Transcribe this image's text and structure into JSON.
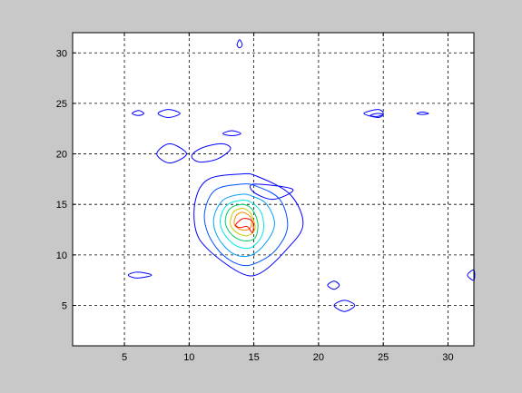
{
  "window": {
    "background": "#c8c8c8"
  },
  "chart_data": {
    "type": "contour",
    "title": "",
    "xlabel": "",
    "ylabel": "",
    "xlim": [
      1,
      32
    ],
    "ylim": [
      1,
      32
    ],
    "grid": true,
    "grid_style": "dashed",
    "xticks": [
      5,
      10,
      15,
      20,
      25,
      30
    ],
    "yticks": [
      5,
      10,
      15,
      20,
      25,
      30
    ],
    "xtick_labels": [
      "5",
      "10",
      "15",
      "20",
      "25",
      "30"
    ],
    "ytick_labels": [
      "5",
      "10",
      "15",
      "20",
      "25",
      "30"
    ],
    "level_colors": [
      "#0000ff",
      "#0050ff",
      "#00a0ff",
      "#00e6e6",
      "#00cc66",
      "#c8c800",
      "#ff8c00",
      "#ff0000"
    ],
    "contours": [
      {
        "level": 1,
        "color": "#0000ff",
        "points": [
          [
            14,
            18
          ],
          [
            11.5,
            17.5
          ],
          [
            10.5,
            15.5
          ],
          [
            10.5,
            12.5
          ],
          [
            11.5,
            10.5
          ],
          [
            14,
            8.2
          ],
          [
            15.5,
            8.2
          ],
          [
            17.5,
            10.5
          ],
          [
            18.8,
            13
          ],
          [
            17.8,
            16
          ],
          [
            15.2,
            17.8
          ]
        ]
      },
      {
        "level": 1,
        "color": "#0000ff",
        "points": [
          [
            15,
            17
          ],
          [
            18,
            16.5
          ],
          [
            16.5,
            15.5
          ],
          [
            15,
            16.2
          ]
        ]
      },
      {
        "level": 2,
        "color": "#0050ff",
        "points": [
          [
            14,
            17
          ],
          [
            12,
            16.4
          ],
          [
            11.2,
            14.2
          ],
          [
            11.5,
            12
          ],
          [
            12.6,
            10
          ],
          [
            14,
            9
          ],
          [
            15.2,
            9.2
          ],
          [
            16.7,
            10.5
          ],
          [
            17.6,
            12.8
          ],
          [
            17,
            15.5
          ],
          [
            15.2,
            16.8
          ]
        ]
      },
      {
        "level": 3,
        "color": "#00a0ff",
        "points": [
          [
            14,
            16
          ],
          [
            12.6,
            15.4
          ],
          [
            11.9,
            13.6
          ],
          [
            12.2,
            11.8
          ],
          [
            13.3,
            10.2
          ],
          [
            14.6,
            9.9
          ],
          [
            15.8,
            11
          ],
          [
            16.6,
            13
          ],
          [
            16,
            15
          ],
          [
            14.9,
            15.8
          ]
        ]
      },
      {
        "level": 4,
        "color": "#00e6e6",
        "points": [
          [
            14,
            15.4
          ],
          [
            12.9,
            14.9
          ],
          [
            12.4,
            13.4
          ],
          [
            12.8,
            11.9
          ],
          [
            13.8,
            10.8
          ],
          [
            14.9,
            10.8
          ],
          [
            15.7,
            12.2
          ],
          [
            15.6,
            14.1
          ],
          [
            14.8,
            15.2
          ]
        ]
      },
      {
        "level": 5,
        "color": "#00cc66",
        "points": [
          [
            14,
            15
          ],
          [
            13.1,
            14.5
          ],
          [
            12.8,
            13.2
          ],
          [
            13.3,
            12
          ],
          [
            14.2,
            11.4
          ],
          [
            15.1,
            11.7
          ],
          [
            15.3,
            13.2
          ],
          [
            14.8,
            14.6
          ]
        ]
      },
      {
        "level": 6,
        "color": "#c8c800",
        "points": [
          [
            14,
            14.6
          ],
          [
            13.4,
            14.2
          ],
          [
            13.2,
            13
          ],
          [
            13.7,
            12.2
          ],
          [
            14.5,
            11.9
          ],
          [
            15.1,
            12.6
          ],
          [
            14.8,
            14
          ],
          [
            14.4,
            14.5
          ]
        ]
      },
      {
        "level": 7,
        "color": "#ff8c00",
        "points": [
          [
            14,
            14.2
          ],
          [
            13.6,
            13.8
          ],
          [
            13.5,
            13
          ],
          [
            14,
            12.5
          ],
          [
            14.7,
            12.6
          ],
          [
            14.8,
            13.6
          ],
          [
            14.4,
            14.1
          ]
        ]
      },
      {
        "level": 8,
        "color": "#ff0000",
        "points": [
          [
            13.6,
            13
          ],
          [
            14.2,
            13.6
          ],
          [
            14.9,
            13.3
          ],
          [
            14.9,
            12.2
          ],
          [
            14.5,
            12.8
          ],
          [
            13.9,
            12.7
          ]
        ]
      },
      {
        "level": 1,
        "color": "#0000ff",
        "points": [
          [
            7.5,
            20
          ],
          [
            8.5,
            21
          ],
          [
            9.8,
            20
          ],
          [
            8.5,
            19.1
          ]
        ]
      },
      {
        "level": 1,
        "color": "#0000ff",
        "points": [
          [
            10.2,
            19.8
          ],
          [
            11,
            20.6
          ],
          [
            12.5,
            21
          ],
          [
            13.2,
            20.5
          ],
          [
            12.2,
            19.5
          ],
          [
            10.8,
            19.2
          ]
        ]
      },
      {
        "level": 1,
        "color": "#0000ff",
        "points": [
          [
            13.9,
            31.3
          ],
          [
            14.1,
            30.8
          ],
          [
            13.9,
            30.5
          ],
          [
            13.7,
            30.8
          ]
        ]
      },
      {
        "level": 1,
        "color": "#0000ff",
        "points": [
          [
            5.6,
            24
          ],
          [
            6.1,
            24.3
          ],
          [
            6.5,
            24
          ],
          [
            6.1,
            23.8
          ]
        ]
      },
      {
        "level": 1,
        "color": "#0000ff",
        "points": [
          [
            7.6,
            24
          ],
          [
            8.4,
            24.4
          ],
          [
            9.3,
            24
          ],
          [
            8.4,
            23.6
          ]
        ]
      },
      {
        "level": 1,
        "color": "#0000ff",
        "points": [
          [
            12.6,
            22
          ],
          [
            13.3,
            22.3
          ],
          [
            14,
            22
          ],
          [
            13.3,
            21.8
          ]
        ]
      },
      {
        "level": 1,
        "color": "#0000ff",
        "points": [
          [
            23.5,
            24
          ],
          [
            24.6,
            24.4
          ],
          [
            25,
            24
          ],
          [
            24.6,
            23.6
          ]
        ]
      },
      {
        "level": 1,
        "color": "#0000ff",
        "points": [
          [
            24,
            23.8
          ],
          [
            24.5,
            24
          ],
          [
            25,
            23.9
          ],
          [
            24.5,
            23.7
          ]
        ]
      },
      {
        "level": 1,
        "color": "#0000ff",
        "points": [
          [
            27.6,
            24
          ],
          [
            28,
            24.15
          ],
          [
            28.5,
            24
          ],
          [
            28,
            23.9
          ]
        ]
      },
      {
        "level": 1,
        "color": "#0000ff",
        "points": [
          [
            5.3,
            8
          ],
          [
            6,
            8.3
          ],
          [
            7.1,
            8
          ],
          [
            6,
            7.7
          ]
        ]
      },
      {
        "level": 1,
        "color": "#0000ff",
        "points": [
          [
            20.7,
            7
          ],
          [
            21.2,
            7.4
          ],
          [
            21.6,
            7
          ],
          [
            21.2,
            6.6
          ]
        ]
      },
      {
        "level": 1,
        "color": "#0000ff",
        "points": [
          [
            21.2,
            5
          ],
          [
            22,
            5.5
          ],
          [
            22.8,
            5
          ],
          [
            22,
            4.4
          ]
        ]
      },
      {
        "level": 1,
        "color": "#0000ff",
        "points": [
          [
            31.5,
            8
          ],
          [
            32,
            8.5
          ],
          [
            32,
            7.5
          ]
        ]
      }
    ]
  }
}
